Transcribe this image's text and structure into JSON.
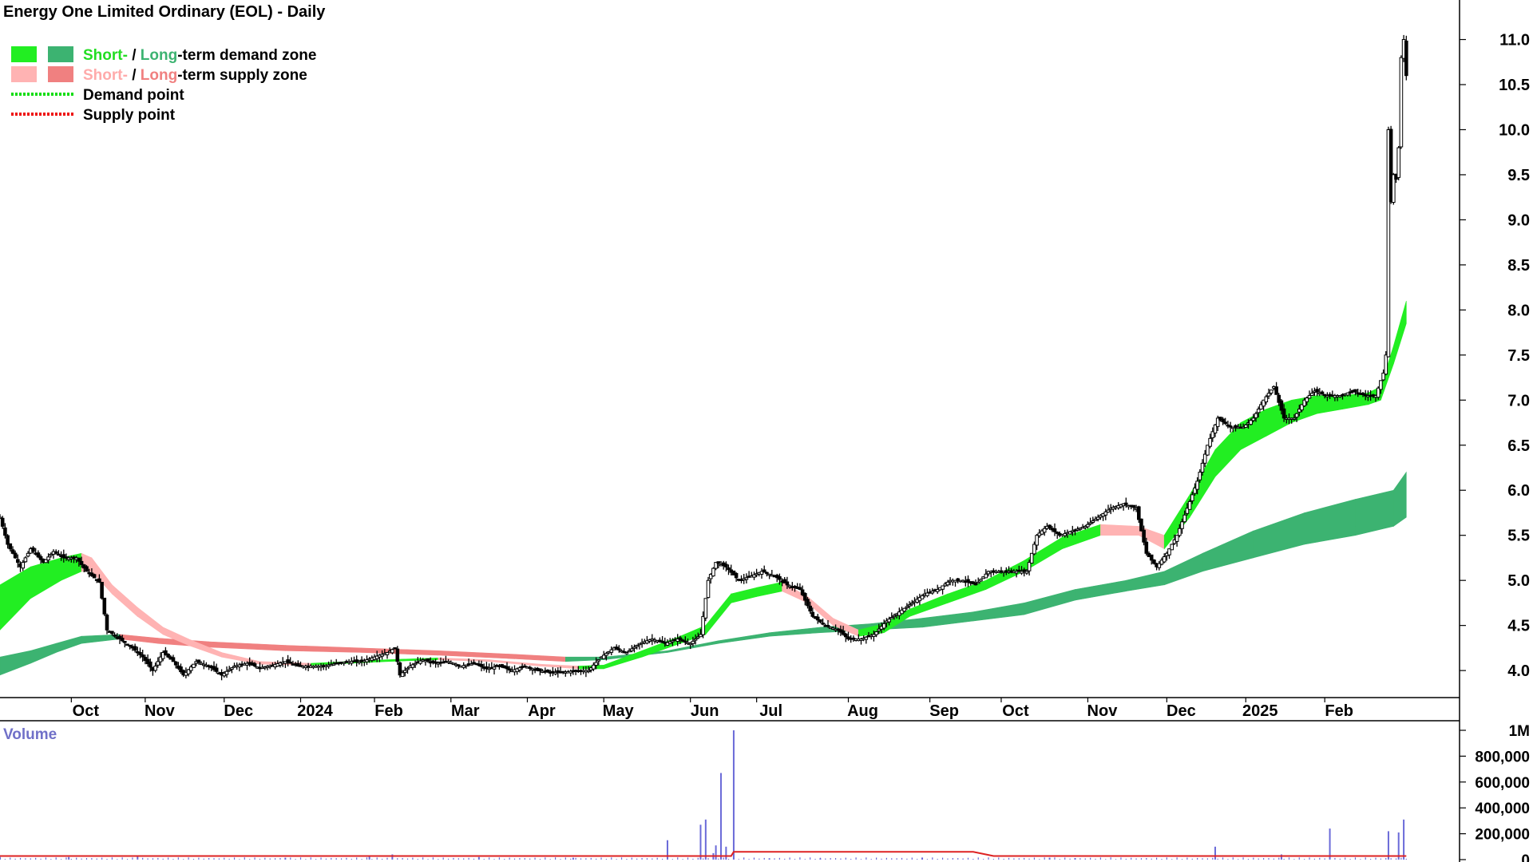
{
  "chart_data": {
    "type": "candlestick",
    "title": "Energy One Limited Ordinary (EOL) - Daily",
    "colors": {
      "short_demand": "#22ee22",
      "long_demand": "#3cb371",
      "short_supply": "#ffb3b3",
      "long_supply": "#f08080",
      "transition": "#ff6a1a",
      "demand_point": "#11dd11",
      "supply_point": "#ee1111",
      "volume_bar": "#6a6ad8",
      "volume_line": "#dd2222",
      "candle": "#000000"
    },
    "legend": {
      "placement": "top-left",
      "rows": [
        {
          "icons": [
            "short_demand",
            "long_demand"
          ],
          "parts": [
            {
              "text": "Short-",
              "color": "#22dd22"
            },
            {
              "text": " / ",
              "color": "#000000"
            },
            {
              "text": "Long",
              "color": "#3cb371"
            },
            {
              "text": "-term demand zone",
              "color": "#000000"
            }
          ]
        },
        {
          "icons": [
            "short_supply",
            "long_supply"
          ],
          "parts": [
            {
              "text": "Short-",
              "color": "#ffaaaa"
            },
            {
              "text": " / ",
              "color": "#000000"
            },
            {
              "text": "Long",
              "color": "#f08080"
            },
            {
              "text": "-term supply zone",
              "color": "#000000"
            }
          ]
        },
        {
          "icons": [
            "demand_point"
          ],
          "parts": [
            {
              "text": "Demand point",
              "color": "#000000"
            }
          ]
        },
        {
          "icons": [
            "supply_point"
          ],
          "parts": [
            {
              "text": "Supply point",
              "color": "#000000"
            }
          ]
        }
      ]
    },
    "x_ticks": [
      {
        "label": "Oct",
        "t": 66
      },
      {
        "label": "Nov",
        "t": 95
      },
      {
        "label": "Dec",
        "t": 126
      },
      {
        "label": "2024",
        "t": 156
      },
      {
        "label": "Feb",
        "t": 185
      },
      {
        "label": "Mar",
        "t": 215
      },
      {
        "label": "Apr",
        "t": 245
      },
      {
        "label": "May",
        "t": 275
      },
      {
        "label": "Jun",
        "t": 309
      },
      {
        "label": "Jul",
        "t": 335
      },
      {
        "label": "Aug",
        "t": 371
      },
      {
        "label": "Sep",
        "t": 403
      },
      {
        "label": "Oct",
        "t": 431
      },
      {
        "label": "Nov",
        "t": 465
      },
      {
        "label": "Dec",
        "t": 496
      },
      {
        "label": "2025",
        "t": 527
      },
      {
        "label": "Feb",
        "t": 558
      }
    ],
    "t_range": [
      38,
      599
    ],
    "y_ticks": [
      "11.0",
      "10.5",
      "10.0",
      "9.5",
      "9.0",
      "8.5",
      "8.0",
      "7.5",
      "7.0",
      "6.5",
      "6.0",
      "5.5",
      "5.0",
      "4.5",
      "4.0"
    ],
    "y_range": [
      3.7,
      11.35
    ],
    "price_path": [
      [
        38,
        5.7
      ],
      [
        41,
        5.4
      ],
      [
        46,
        5.15
      ],
      [
        50,
        5.35
      ],
      [
        55,
        5.2
      ],
      [
        59,
        5.32
      ],
      [
        63,
        5.25
      ],
      [
        68,
        5.25
      ],
      [
        72,
        5.1
      ],
      [
        77,
        4.98
      ],
      [
        80,
        4.45
      ],
      [
        85,
        4.35
      ],
      [
        90,
        4.25
      ],
      [
        94,
        4.15
      ],
      [
        98,
        4.0
      ],
      [
        102,
        4.2
      ],
      [
        106,
        4.1
      ],
      [
        110,
        3.95
      ],
      [
        115,
        4.1
      ],
      [
        120,
        4.05
      ],
      [
        125,
        3.95
      ],
      [
        130,
        4.05
      ],
      [
        135,
        4.08
      ],
      [
        140,
        4.03
      ],
      [
        145,
        4.06
      ],
      [
        150,
        4.1
      ],
      [
        155,
        4.05
      ],
      [
        160,
        4.05
      ],
      [
        165,
        4.05
      ],
      [
        170,
        4.08
      ],
      [
        175,
        4.1
      ],
      [
        180,
        4.1
      ],
      [
        185,
        4.15
      ],
      [
        190,
        4.2
      ],
      [
        193,
        4.25
      ],
      [
        195,
        3.95
      ],
      [
        199,
        4.05
      ],
      [
        204,
        4.12
      ],
      [
        209,
        4.08
      ],
      [
        214,
        4.1
      ],
      [
        219,
        4.05
      ],
      [
        224,
        4.08
      ],
      [
        229,
        4.02
      ],
      [
        234,
        4.05
      ],
      [
        239,
        4.0
      ],
      [
        244,
        4.05
      ],
      [
        249,
        4.0
      ],
      [
        254,
        3.98
      ],
      [
        259,
        3.98
      ],
      [
        264,
        4.0
      ],
      [
        269,
        4.0
      ],
      [
        274,
        4.15
      ],
      [
        279,
        4.25
      ],
      [
        284,
        4.2
      ],
      [
        289,
        4.3
      ],
      [
        294,
        4.35
      ],
      [
        299,
        4.3
      ],
      [
        304,
        4.35
      ],
      [
        309,
        4.3
      ],
      [
        313,
        4.4
      ],
      [
        316,
        5.0
      ],
      [
        319,
        5.2
      ],
      [
        323,
        5.15
      ],
      [
        328,
        5.0
      ],
      [
        333,
        5.05
      ],
      [
        337,
        5.1
      ],
      [
        342,
        5.05
      ],
      [
        347,
        4.95
      ],
      [
        352,
        4.9
      ],
      [
        357,
        4.6
      ],
      [
        362,
        4.5
      ],
      [
        367,
        4.45
      ],
      [
        371,
        4.35
      ],
      [
        376,
        4.35
      ],
      [
        381,
        4.4
      ],
      [
        386,
        4.55
      ],
      [
        391,
        4.65
      ],
      [
        396,
        4.75
      ],
      [
        401,
        4.85
      ],
      [
        406,
        4.9
      ],
      [
        411,
        5.0
      ],
      [
        416,
        5.0
      ],
      [
        421,
        4.95
      ],
      [
        426,
        5.1
      ],
      [
        431,
        5.1
      ],
      [
        436,
        5.1
      ],
      [
        441,
        5.1
      ],
      [
        445,
        5.5
      ],
      [
        449,
        5.6
      ],
      [
        454,
        5.5
      ],
      [
        459,
        5.55
      ],
      [
        464,
        5.6
      ],
      [
        469,
        5.7
      ],
      [
        474,
        5.8
      ],
      [
        479,
        5.85
      ],
      [
        484,
        5.8
      ],
      [
        488,
        5.3
      ],
      [
        492,
        5.15
      ],
      [
        496,
        5.3
      ],
      [
        500,
        5.5
      ],
      [
        504,
        5.8
      ],
      [
        508,
        6.1
      ],
      [
        512,
        6.5
      ],
      [
        516,
        6.8
      ],
      [
        521,
        6.7
      ],
      [
        526,
        6.7
      ],
      [
        530,
        6.8
      ],
      [
        534,
        7.0
      ],
      [
        538,
        7.15
      ],
      [
        542,
        6.8
      ],
      [
        546,
        6.8
      ],
      [
        550,
        7.0
      ],
      [
        554,
        7.1
      ],
      [
        559,
        7.05
      ],
      [
        564,
        7.05
      ],
      [
        569,
        7.1
      ],
      [
        574,
        7.05
      ],
      [
        578,
        7.05
      ],
      [
        581,
        7.3
      ],
      [
        582,
        7.5
      ],
      [
        583,
        10.0
      ],
      [
        584,
        9.2
      ],
      [
        585,
        9.5
      ],
      [
        586,
        9.45
      ],
      [
        587,
        9.8
      ],
      [
        588,
        10.8
      ],
      [
        589,
        11.0
      ],
      [
        590,
        10.6
      ]
    ],
    "short_ema": {
      "lower": [
        [
          38,
          4.45
        ],
        [
          50,
          4.8
        ],
        [
          62,
          5.0
        ],
        [
          70,
          5.1
        ],
        [
          74,
          5.1
        ],
        [
          82,
          4.85
        ],
        [
          92,
          4.6
        ],
        [
          102,
          4.4
        ],
        [
          112,
          4.28
        ],
        [
          125,
          4.15
        ],
        [
          140,
          4.07
        ],
        [
          160,
          4.06
        ],
        [
          190,
          4.1
        ],
        [
          210,
          4.12
        ],
        [
          230,
          4.1
        ],
        [
          250,
          4.05
        ],
        [
          265,
          4.02
        ],
        [
          275,
          4.02
        ],
        [
          290,
          4.15
        ],
        [
          305,
          4.3
        ],
        [
          315,
          4.4
        ],
        [
          325,
          4.75
        ],
        [
          335,
          4.82
        ],
        [
          345,
          4.88
        ],
        [
          355,
          4.75
        ],
        [
          365,
          4.5
        ],
        [
          375,
          4.38
        ],
        [
          385,
          4.42
        ],
        [
          395,
          4.6
        ],
        [
          410,
          4.75
        ],
        [
          425,
          4.9
        ],
        [
          440,
          5.1
        ],
        [
          455,
          5.35
        ],
        [
          470,
          5.5
        ],
        [
          485,
          5.5
        ],
        [
          495,
          5.35
        ],
        [
          505,
          5.7
        ],
        [
          515,
          6.15
        ],
        [
          525,
          6.45
        ],
        [
          535,
          6.6
        ],
        [
          545,
          6.75
        ],
        [
          555,
          6.85
        ],
        [
          565,
          6.9
        ],
        [
          575,
          6.95
        ],
        [
          580,
          7.0
        ],
        [
          585,
          7.4
        ],
        [
          590,
          7.85
        ]
      ],
      "upper": [
        [
          38,
          4.95
        ],
        [
          50,
          5.15
        ],
        [
          62,
          5.25
        ],
        [
          70,
          5.3
        ],
        [
          74,
          5.25
        ],
        [
          82,
          4.95
        ],
        [
          92,
          4.7
        ],
        [
          102,
          4.48
        ],
        [
          112,
          4.35
        ],
        [
          125,
          4.2
        ],
        [
          140,
          4.1
        ],
        [
          160,
          4.08
        ],
        [
          190,
          4.12
        ],
        [
          210,
          4.14
        ],
        [
          230,
          4.12
        ],
        [
          250,
          4.07
        ],
        [
          265,
          4.05
        ],
        [
          275,
          4.06
        ],
        [
          290,
          4.22
        ],
        [
          305,
          4.38
        ],
        [
          315,
          4.5
        ],
        [
          325,
          4.85
        ],
        [
          335,
          4.92
        ],
        [
          345,
          4.98
        ],
        [
          355,
          4.82
        ],
        [
          365,
          4.58
        ],
        [
          375,
          4.45
        ],
        [
          385,
          4.52
        ],
        [
          395,
          4.68
        ],
        [
          410,
          4.85
        ],
        [
          425,
          5.0
        ],
        [
          440,
          5.22
        ],
        [
          455,
          5.48
        ],
        [
          470,
          5.62
        ],
        [
          485,
          5.6
        ],
        [
          495,
          5.5
        ],
        [
          505,
          5.95
        ],
        [
          515,
          6.45
        ],
        [
          525,
          6.75
        ],
        [
          535,
          6.9
        ],
        [
          545,
          7.0
        ],
        [
          555,
          7.05
        ],
        [
          565,
          7.05
        ],
        [
          575,
          7.08
        ],
        [
          580,
          7.15
        ],
        [
          585,
          7.6
        ],
        [
          590,
          8.1
        ]
      ]
    },
    "long_ema": {
      "lower": [
        [
          38,
          3.95
        ],
        [
          50,
          4.08
        ],
        [
          60,
          4.2
        ],
        [
          70,
          4.3
        ],
        [
          85,
          4.35
        ],
        [
          100,
          4.3
        ],
        [
          120,
          4.26
        ],
        [
          150,
          4.22
        ],
        [
          180,
          4.2
        ],
        [
          210,
          4.17
        ],
        [
          240,
          4.13
        ],
        [
          260,
          4.1
        ],
        [
          275,
          4.12
        ],
        [
          300,
          4.2
        ],
        [
          320,
          4.3
        ],
        [
          340,
          4.38
        ],
        [
          360,
          4.42
        ],
        [
          380,
          4.45
        ],
        [
          400,
          4.48
        ],
        [
          420,
          4.55
        ],
        [
          440,
          4.62
        ],
        [
          460,
          4.78
        ],
        [
          480,
          4.88
        ],
        [
          495,
          4.95
        ],
        [
          510,
          5.1
        ],
        [
          530,
          5.25
        ],
        [
          550,
          5.4
        ],
        [
          570,
          5.5
        ],
        [
          585,
          5.6
        ],
        [
          590,
          5.7
        ]
      ],
      "upper": [
        [
          38,
          4.15
        ],
        [
          50,
          4.22
        ],
        [
          60,
          4.3
        ],
        [
          70,
          4.38
        ],
        [
          85,
          4.4
        ],
        [
          100,
          4.36
        ],
        [
          120,
          4.32
        ],
        [
          150,
          4.28
        ],
        [
          180,
          4.25
        ],
        [
          210,
          4.22
        ],
        [
          240,
          4.18
        ],
        [
          260,
          4.15
        ],
        [
          275,
          4.15
        ],
        [
          300,
          4.22
        ],
        [
          320,
          4.33
        ],
        [
          340,
          4.42
        ],
        [
          360,
          4.48
        ],
        [
          380,
          4.52
        ],
        [
          400,
          4.58
        ],
        [
          420,
          4.65
        ],
        [
          440,
          4.75
        ],
        [
          460,
          4.9
        ],
        [
          480,
          5.0
        ],
        [
          495,
          5.1
        ],
        [
          510,
          5.3
        ],
        [
          530,
          5.55
        ],
        [
          550,
          5.75
        ],
        [
          570,
          5.9
        ],
        [
          585,
          6.0
        ],
        [
          590,
          6.2
        ]
      ]
    },
    "volume": {
      "y_ticks": [
        "1M",
        "800,000",
        "600,000",
        "400,000",
        "200,000",
        "0"
      ],
      "y_max": 1000000,
      "spikes": [
        [
          38,
          20000
        ],
        [
          65,
          20000
        ],
        [
          92,
          30000
        ],
        [
          150,
          15000
        ],
        [
          183,
          30000
        ],
        [
          192,
          40000
        ],
        [
          226,
          20000
        ],
        [
          263,
          15000
        ],
        [
          300,
          150000
        ],
        [
          313,
          270000
        ],
        [
          315,
          310000
        ],
        [
          318,
          50000
        ],
        [
          319,
          110000
        ],
        [
          321,
          670000
        ],
        [
          323,
          100000
        ],
        [
          326,
          1000000
        ],
        [
          340,
          10000
        ],
        [
          360,
          10000
        ],
        [
          400,
          15000
        ],
        [
          450,
          15000
        ],
        [
          460,
          12000
        ],
        [
          515,
          100000
        ],
        [
          541,
          40000
        ],
        [
          560,
          240000
        ],
        [
          583,
          220000
        ],
        [
          587,
          210000
        ],
        [
          589,
          310000
        ]
      ],
      "avg_path": [
        [
          38,
          28000
        ],
        [
          200,
          28000
        ],
        [
          325,
          28000
        ],
        [
          326,
          60000
        ],
        [
          420,
          60000
        ],
        [
          428,
          28000
        ],
        [
          590,
          28000
        ]
      ]
    }
  }
}
